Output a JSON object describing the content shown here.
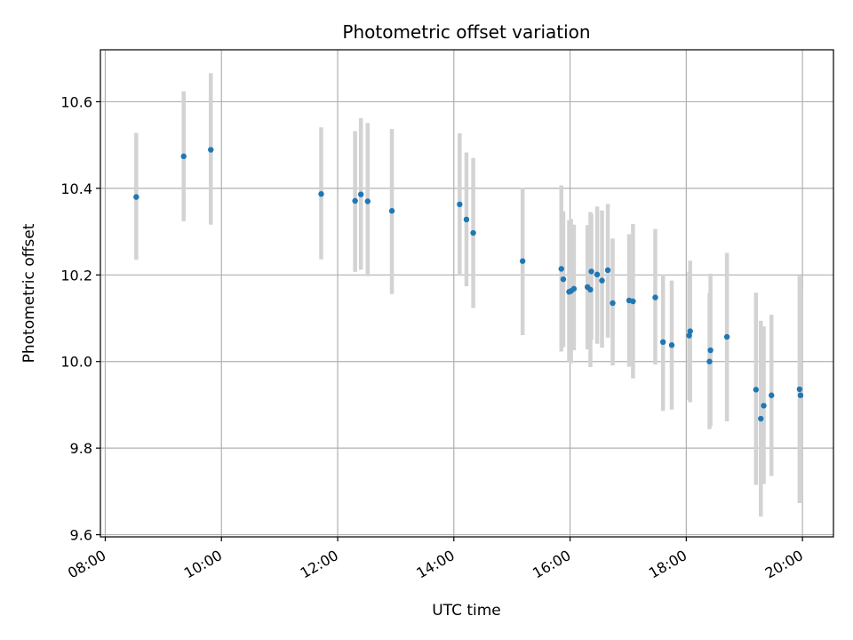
{
  "chart_data": {
    "type": "scatter",
    "title": "Photometric offset variation",
    "xlabel": "UTC time",
    "ylabel": "Photometric offset",
    "x_ticks": [
      "08:00",
      "10:00",
      "12:00",
      "14:00",
      "16:00",
      "18:00",
      "20:00"
    ],
    "y_ticks": [
      "9.6",
      "9.8",
      "10.0",
      "10.2",
      "10.4",
      "10.6"
    ],
    "xlim": [
      "07:55",
      "20:32"
    ],
    "ylim": [
      9.595,
      10.72
    ],
    "grid": true,
    "colors": {
      "points": "#1f77b4",
      "errorbars": "#d3d3d3",
      "grid": "#b0b0b0"
    },
    "points": [
      {
        "t": "08:32",
        "y": 10.38,
        "lo": 10.235,
        "hi": 10.528
      },
      {
        "t": "09:21",
        "y": 10.474,
        "lo": 10.324,
        "hi": 10.624
      },
      {
        "t": "09:49",
        "y": 10.489,
        "lo": 10.316,
        "hi": 10.666
      },
      {
        "t": "11:43",
        "y": 10.387,
        "lo": 10.236,
        "hi": 10.541
      },
      {
        "t": "12:18",
        "y": 10.371,
        "lo": 10.207,
        "hi": 10.532
      },
      {
        "t": "12:24",
        "y": 10.386,
        "lo": 10.212,
        "hi": 10.562
      },
      {
        "t": "12:31",
        "y": 10.37,
        "lo": 10.197,
        "hi": 10.551
      },
      {
        "t": "12:56",
        "y": 10.348,
        "lo": 10.156,
        "hi": 10.537
      },
      {
        "t": "14:06",
        "y": 10.363,
        "lo": 10.198,
        "hi": 10.527
      },
      {
        "t": "14:13",
        "y": 10.328,
        "lo": 10.174,
        "hi": 10.483
      },
      {
        "t": "14:20",
        "y": 10.297,
        "lo": 10.124,
        "hi": 10.47
      },
      {
        "t": "15:11",
        "y": 10.232,
        "lo": 10.061,
        "hi": 10.401
      },
      {
        "t": "15:51",
        "y": 10.214,
        "lo": 10.023,
        "hi": 10.407
      },
      {
        "t": "15:53",
        "y": 10.19,
        "lo": 10.033,
        "hi": 10.347
      },
      {
        "t": "15:59",
        "y": 10.161,
        "lo": 9.998,
        "hi": 10.326
      },
      {
        "t": "16:01",
        "y": 10.163,
        "lo": 9.996,
        "hi": 10.329
      },
      {
        "t": "16:04",
        "y": 10.168,
        "lo": 10.026,
        "hi": 10.316
      },
      {
        "t": "16:18",
        "y": 10.172,
        "lo": 10.028,
        "hi": 10.315
      },
      {
        "t": "16:21",
        "y": 10.166,
        "lo": 9.987,
        "hi": 10.345
      },
      {
        "t": "16:22",
        "y": 10.208,
        "lo": 10.05,
        "hi": 10.341
      },
      {
        "t": "16:28",
        "y": 10.201,
        "lo": 10.041,
        "hi": 10.358
      },
      {
        "t": "16:33",
        "y": 10.187,
        "lo": 10.032,
        "hi": 10.349
      },
      {
        "t": "16:39",
        "y": 10.211,
        "lo": 10.055,
        "hi": 10.364
      },
      {
        "t": "16:44",
        "y": 10.135,
        "lo": 9.991,
        "hi": 10.284
      },
      {
        "t": "17:01",
        "y": 10.141,
        "lo": 9.988,
        "hi": 10.294
      },
      {
        "t": "17:05",
        "y": 10.139,
        "lo": 9.961,
        "hi": 10.318
      },
      {
        "t": "17:28",
        "y": 10.148,
        "lo": 9.993,
        "hi": 10.306
      },
      {
        "t": "17:36",
        "y": 10.045,
        "lo": 9.886,
        "hi": 10.201
      },
      {
        "t": "17:45",
        "y": 10.038,
        "lo": 9.889,
        "hi": 10.187
      },
      {
        "t": "18:03",
        "y": 10.06,
        "lo": 9.911,
        "hi": 10.207
      },
      {
        "t": "18:04",
        "y": 10.07,
        "lo": 9.906,
        "hi": 10.233
      },
      {
        "t": "18:24",
        "y": 10.0,
        "lo": 9.844,
        "hi": 10.158
      },
      {
        "t": "18:25",
        "y": 10.026,
        "lo": 9.851,
        "hi": 10.203
      },
      {
        "t": "18:42",
        "y": 10.057,
        "lo": 9.862,
        "hi": 10.251
      },
      {
        "t": "19:12",
        "y": 9.935,
        "lo": 9.715,
        "hi": 10.159
      },
      {
        "t": "19:17",
        "y": 9.868,
        "lo": 9.642,
        "hi": 10.094
      },
      {
        "t": "19:20",
        "y": 9.898,
        "lo": 9.717,
        "hi": 10.081
      },
      {
        "t": "19:28",
        "y": 9.922,
        "lo": 9.736,
        "hi": 10.108
      },
      {
        "t": "19:57",
        "y": 9.936,
        "lo": 9.673,
        "hi": 10.198
      },
      {
        "t": "19:58",
        "y": 9.922,
        "lo": 9.689,
        "hi": 10.155
      }
    ]
  }
}
